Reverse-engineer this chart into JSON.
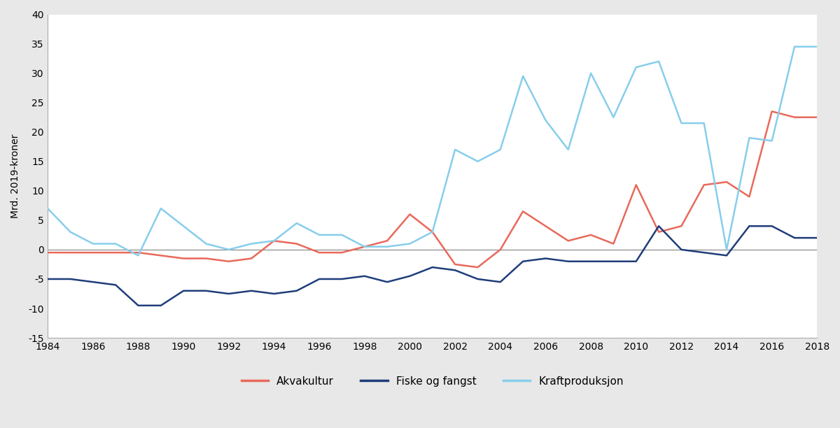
{
  "years": [
    1984,
    1985,
    1986,
    1987,
    1988,
    1989,
    1990,
    1991,
    1992,
    1993,
    1994,
    1995,
    1996,
    1997,
    1998,
    1999,
    2000,
    2001,
    2002,
    2003,
    2004,
    2005,
    2006,
    2007,
    2008,
    2009,
    2010,
    2011,
    2012,
    2013,
    2014,
    2015,
    2016,
    2017,
    2018
  ],
  "akvakultur": [
    -0.5,
    -0.5,
    -0.5,
    -0.5,
    -0.5,
    -1.0,
    -1.5,
    -1.5,
    -2.0,
    -1.5,
    1.5,
    1.0,
    -0.5,
    -0.5,
    0.5,
    1.5,
    6.0,
    3.0,
    -2.5,
    -3.0,
    0.0,
    6.5,
    4.0,
    1.5,
    2.5,
    1.0,
    11.0,
    3.0,
    4.0,
    11.0,
    11.5,
    9.0,
    23.5,
    22.5,
    22.5
  ],
  "fiske_og_fangst": [
    -5.0,
    -5.0,
    -5.5,
    -6.0,
    -9.5,
    -9.5,
    -7.0,
    -7.0,
    -7.5,
    -7.0,
    -7.5,
    -7.0,
    -5.0,
    -5.0,
    -4.5,
    -5.5,
    -4.5,
    -3.0,
    -3.5,
    -5.0,
    -5.5,
    -2.0,
    -1.5,
    -2.0,
    -2.0,
    -2.0,
    -2.0,
    4.0,
    0.0,
    -0.5,
    -1.0,
    4.0,
    4.0,
    2.0,
    2.0
  ],
  "kraftproduksjon": [
    7.0,
    3.0,
    1.0,
    1.0,
    -1.0,
    7.0,
    4.0,
    1.0,
    0.0,
    1.0,
    1.5,
    4.5,
    2.5,
    2.5,
    0.5,
    0.5,
    1.0,
    3.0,
    17.0,
    15.0,
    17.0,
    29.5,
    22.0,
    17.0,
    30.0,
    22.5,
    31.0,
    32.0,
    21.5,
    21.5,
    0.0,
    19.0,
    18.5,
    34.5,
    34.5
  ],
  "akvakultur_color": "#e8695a",
  "fiske_og_fangst_color": "#1f3d7a",
  "kraftproduksjon_color": "#87ceeb",
  "figure_background_color": "#e8e8e8",
  "plot_background_color": "#ffffff",
  "ylabel": "Mrd. 2019-kroner",
  "ylim": [
    -15,
    40
  ],
  "yticks": [
    -15,
    -10,
    -5,
    0,
    5,
    10,
    15,
    20,
    25,
    30,
    35,
    40
  ],
  "legend_labels": [
    "Akvakultur",
    "Fiske og fangst",
    "Kraftproduksjon"
  ],
  "line_width": 1.8
}
